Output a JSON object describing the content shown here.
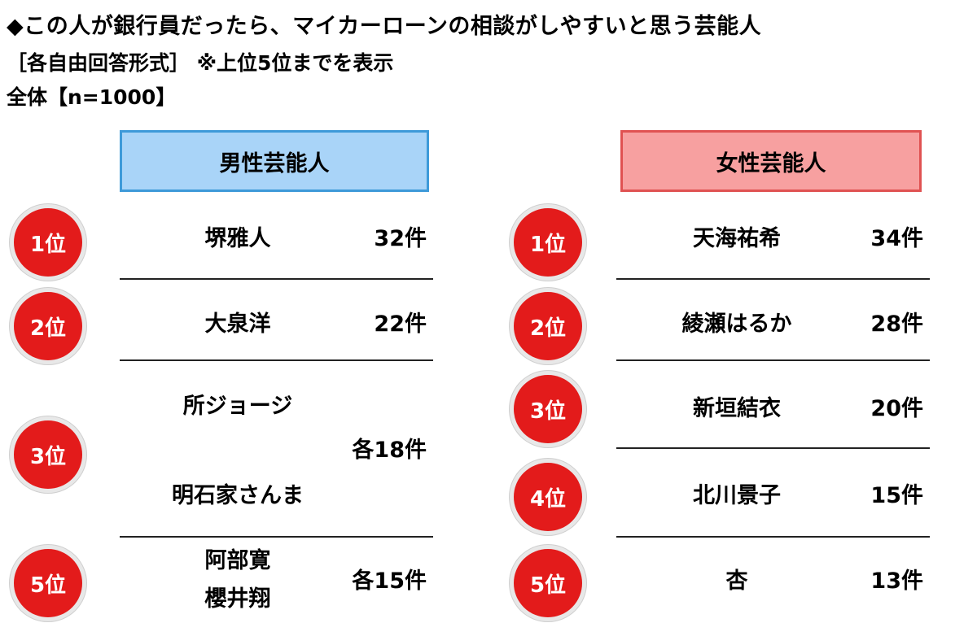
{
  "header": {
    "title": "◆この人が銀行員だったら、マイカーローンの相談がしやすいと思う芸能人",
    "subtitle": "［各自由回答形式］ ※上位5位までを表示",
    "sample": "全体【n=1000】"
  },
  "male": {
    "heading": "男性芸能人",
    "rows": [
      {
        "rank": "1位",
        "names": [
          "堺雅人"
        ],
        "count": "32件"
      },
      {
        "rank": "2位",
        "names": [
          "大泉洋"
        ],
        "count": "22件"
      },
      {
        "rank": "3位",
        "names": [
          "所ジョージ",
          "明石家さんま"
        ],
        "count": "各18件"
      },
      {
        "rank": "5位",
        "names": [
          "阿部寛",
          "櫻井翔"
        ],
        "count": "各15件"
      }
    ]
  },
  "female": {
    "heading": "女性芸能人",
    "rows": [
      {
        "rank": "1位",
        "names": [
          "天海祐希"
        ],
        "count": "34件"
      },
      {
        "rank": "2位",
        "names": [
          "綾瀬はるか"
        ],
        "count": "28件"
      },
      {
        "rank": "3位",
        "names": [
          "新垣結衣"
        ],
        "count": "20件"
      },
      {
        "rank": "4位",
        "names": [
          "北川景子"
        ],
        "count": "15件"
      },
      {
        "rank": "5位",
        "names": [
          "杏"
        ],
        "count": "13件"
      }
    ]
  }
}
